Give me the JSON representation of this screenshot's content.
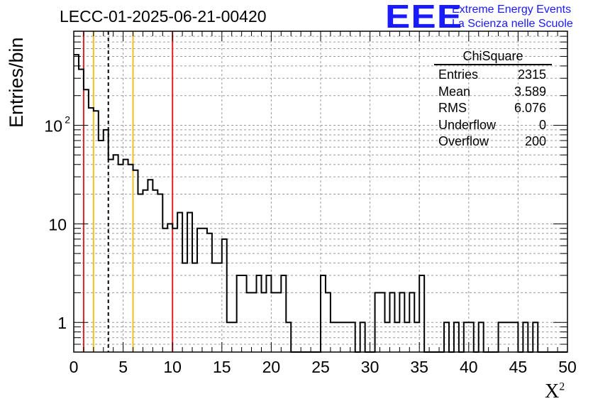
{
  "header": {
    "title": "LECC-01-2025-06-21-00420",
    "logo_mark": "EEE",
    "logo_line1": "Extreme Energy Events",
    "logo_line2": "La Scienza nelle Scuole"
  },
  "stats_box": {
    "title": "ChiSquare",
    "rows": [
      {
        "label": "Entries",
        "value": "2315"
      },
      {
        "label": "Mean",
        "value": "3.589"
      },
      {
        "label": "RMS",
        "value": "6.076"
      },
      {
        "label": "Underflow",
        "value": "0"
      },
      {
        "label": "Overflow",
        "value": "200"
      }
    ]
  },
  "chart_data": {
    "type": "bar",
    "histogram_style": "step",
    "ylabel": "Entries/bin",
    "xlabel_base": "X",
    "xlabel_sup": "2",
    "y_scale": "log",
    "xlim": [
      0,
      50
    ],
    "ylim": [
      0.5,
      900
    ],
    "bin_width": 0.5,
    "x": [
      0.0,
      0.5,
      1.0,
      1.5,
      2.0,
      2.5,
      3.0,
      3.5,
      4.0,
      4.5,
      5.0,
      5.5,
      6.0,
      6.5,
      7.0,
      7.5,
      8.0,
      8.5,
      9.0,
      9.5,
      10.0,
      10.5,
      11.0,
      11.5,
      12.0,
      12.5,
      13.0,
      13.5,
      14.0,
      14.5,
      15.0,
      15.5,
      16.0,
      16.5,
      17.0,
      17.5,
      18.0,
      18.5,
      19.0,
      19.5,
      20.0,
      20.5,
      21.0,
      21.5,
      22.0,
      22.5,
      23.0,
      23.5,
      24.0,
      24.5,
      25.0,
      25.5,
      26.0,
      26.5,
      27.0,
      27.5,
      28.0,
      28.5,
      29.0,
      29.5,
      30.0,
      30.5,
      31.0,
      31.5,
      32.0,
      32.5,
      33.0,
      33.5,
      34.0,
      34.5,
      35.0,
      35.5,
      36.0,
      36.5,
      37.0,
      37.5,
      38.0,
      38.5,
      39.0,
      39.5,
      40.0,
      40.5,
      41.0,
      41.5,
      42.0,
      42.5,
      43.0,
      43.5,
      44.0,
      44.5,
      45.0,
      45.5,
      46.0,
      46.5,
      47.0,
      47.5,
      48.0,
      48.5,
      49.0,
      49.5
    ],
    "values": [
      520,
      370,
      230,
      150,
      140,
      70,
      90,
      45,
      50,
      40,
      45,
      40,
      35,
      20,
      22,
      28,
      22,
      20,
      9,
      10,
      9,
      13,
      4,
      13,
      4,
      9,
      9,
      8,
      4,
      4,
      7,
      1,
      1,
      3,
      3,
      2,
      2,
      3,
      2,
      3,
      2,
      2,
      3,
      1,
      0,
      0,
      0,
      0,
      0,
      0,
      3,
      2,
      1,
      1,
      1,
      1,
      1,
      0,
      1,
      0,
      0,
      2,
      2,
      1,
      2,
      1,
      2,
      1,
      2,
      1,
      3,
      0,
      0,
      0,
      0,
      1,
      0,
      1,
      0,
      1,
      1,
      0,
      1,
      0,
      0,
      0,
      1,
      1,
      1,
      1,
      0,
      1,
      0,
      1,
      0,
      0,
      0,
      0,
      0,
      0
    ],
    "x_ticks": [
      "0",
      "5",
      "10",
      "15",
      "20",
      "25",
      "30",
      "35",
      "40",
      "45",
      "50"
    ],
    "y_ticks": [
      {
        "value": 1,
        "base": "1",
        "exp": ""
      },
      {
        "value": 10,
        "base": "10",
        "exp": ""
      },
      {
        "value": 100,
        "base": "10",
        "exp": "2"
      }
    ],
    "vertical_markers": [
      {
        "x": 1,
        "color": "#dd2222",
        "style": "solid"
      },
      {
        "x": 2,
        "color": "#f0c020",
        "style": "solid"
      },
      {
        "x": 3.5,
        "color": "#000000",
        "style": "dashed"
      },
      {
        "x": 6,
        "color": "#f0c020",
        "style": "solid"
      },
      {
        "x": 10,
        "color": "#dd2222",
        "style": "solid"
      }
    ],
    "grid": true
  }
}
